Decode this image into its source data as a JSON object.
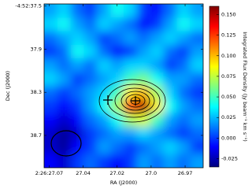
{
  "chart_data": {
    "type": "image",
    "xlabel": "RA (J2000)",
    "ylabel": "Dec (J2000)",
    "colorbar_label": "Integrated Flux Density (Jy beam⁻¹ km s⁻¹)",
    "colormap": "jet",
    "xlim": [
      27.07,
      26.96
    ],
    "xticks": [
      {
        "value": 27.0665,
        "label": "2:26:27.07"
      },
      {
        "value": 27.043,
        "label": "27.04"
      },
      {
        "value": 27.0195,
        "label": "27.02"
      },
      {
        "value": 26.996,
        "label": "27.0"
      },
      {
        "value": 26.9725,
        "label": "26.97"
      }
    ],
    "ylim": [
      37.48,
      39.0
    ],
    "yticks": [
      {
        "value": 37.5,
        "label": "-4:52:37.5"
      },
      37.9,
      38.3,
      38.7
    ],
    "clim": [
      -0.035,
      0.16
    ],
    "cticks": [
      {
        "value": 0.15,
        "label": "0.150"
      },
      {
        "value": 0.125,
        "label": "0.125"
      },
      {
        "value": 0.1,
        "label": "0.100"
      },
      {
        "value": 0.075,
        "label": "0.075"
      },
      {
        "value": 0.05,
        "label": "0.050"
      },
      {
        "value": 0.025,
        "label": "0.025"
      },
      {
        "value": 0,
        "label": "0.000"
      },
      {
        "value": -0.025,
        "label": "-0.025"
      }
    ],
    "z": [
      [
        0.02,
        0.03,
        0.01,
        0.0,
        0.02,
        0.04,
        0.03,
        0.0,
        -0.01,
        0.01,
        0.03,
        0.02
      ],
      [
        0.03,
        0.04,
        0.02,
        0.01,
        0.03,
        0.02,
        0.01,
        -0.01,
        0.0,
        0.02,
        0.04,
        0.03
      ],
      [
        0.01,
        0.02,
        0.03,
        0.02,
        0.0,
        0.01,
        0.02,
        0.01,
        0.02,
        0.03,
        0.02,
        0.01
      ],
      [
        0.0,
        0.01,
        0.04,
        0.03,
        0.01,
        -0.01,
        0.0,
        0.02,
        0.03,
        0.01,
        0.0,
        0.02
      ],
      [
        0.02,
        0.01,
        0.02,
        0.01,
        0.03,
        0.02,
        0.03,
        0.03,
        0.02,
        0.0,
        0.01,
        0.03
      ],
      [
        0.03,
        0.02,
        0.0,
        0.01,
        0.02,
        0.03,
        0.05,
        0.06,
        0.04,
        0.02,
        0.02,
        0.01
      ],
      [
        0.01,
        0.0,
        0.01,
        0.02,
        0.03,
        0.05,
        0.09,
        0.1,
        0.07,
        0.03,
        0.01,
        0.0
      ],
      [
        0.0,
        -0.01,
        0.0,
        0.02,
        0.04,
        0.07,
        0.13,
        0.15,
        0.09,
        0.04,
        0.02,
        0.01
      ],
      [
        -0.01,
        -0.02,
        -0.01,
        0.01,
        0.02,
        0.04,
        0.07,
        0.08,
        0.05,
        0.02,
        0.01,
        0.02
      ],
      [
        -0.02,
        -0.03,
        -0.02,
        0.0,
        0.01,
        0.02,
        0.02,
        0.03,
        0.02,
        0.01,
        0.0,
        0.01
      ],
      [
        -0.02,
        -0.03,
        -0.01,
        0.0,
        0.02,
        0.01,
        0.0,
        0.01,
        0.02,
        0.03,
        0.02,
        0.0
      ],
      [
        -0.01,
        -0.02,
        0.0,
        0.01,
        0.0,
        -0.01,
        0.0,
        0.02,
        0.01,
        0.02,
        0.01,
        0.02
      ]
    ]
  }
}
